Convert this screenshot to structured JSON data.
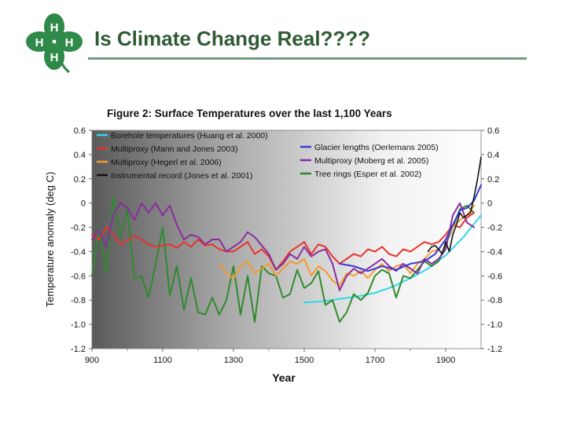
{
  "slide": {
    "title": "Is Climate Change Real????",
    "logo_icon": "four-leaf-clover-icon",
    "logo_letters": "H",
    "title_color": "#2e5a34",
    "rule_color": "#6e9b7f"
  },
  "chart_data": {
    "type": "line",
    "title": "Figure 2: Surface Temperatures over the last 1,100 Years",
    "xlabel": "Year",
    "ylabel": "Temperature anomaly (deg C)",
    "xlim": [
      900,
      2000
    ],
    "ylim": [
      -1.2,
      0.6
    ],
    "x_ticks": [
      "900",
      "1100",
      "1300",
      "1500",
      "1700",
      "1900"
    ],
    "x_tick_values": [
      900,
      1100,
      1300,
      1500,
      1700,
      1900
    ],
    "y_ticks": [
      "0.6",
      "0.4",
      "0.2",
      "0",
      "-0.2",
      "-0.4",
      "-0.6",
      "-0.8",
      "-1.0",
      "-1.2"
    ],
    "y_tick_values": [
      0.6,
      0.4,
      0.2,
      0,
      -0.2,
      -0.4,
      -0.6,
      -0.8,
      -1.0,
      -1.2
    ],
    "background": "gradient dark gray (left) to white (right)",
    "legend_position": "top",
    "series": [
      {
        "name": "Borehole temperatures (Huang et al. 2000)",
        "color": "#33d6e8",
        "x": [
          1500,
          1550,
          1600,
          1650,
          1700,
          1750,
          1800,
          1850,
          1900,
          1950,
          2000
        ],
        "y": [
          -0.82,
          -0.81,
          -0.79,
          -0.77,
          -0.74,
          -0.69,
          -0.62,
          -0.54,
          -0.43,
          -0.28,
          -0.1
        ]
      },
      {
        "name": "Multiproxy (Mann and Jones 2003)",
        "color": "#e8332a",
        "x": [
          900,
          920,
          940,
          960,
          980,
          1000,
          1020,
          1040,
          1060,
          1080,
          1100,
          1120,
          1140,
          1160,
          1180,
          1200,
          1220,
          1240,
          1260,
          1280,
          1300,
          1320,
          1340,
          1360,
          1380,
          1400,
          1420,
          1440,
          1460,
          1480,
          1500,
          1520,
          1540,
          1560,
          1580,
          1600,
          1620,
          1640,
          1660,
          1680,
          1700,
          1720,
          1740,
          1760,
          1780,
          1800,
          1820,
          1840,
          1860,
          1880,
          1900,
          1920,
          1940,
          1960,
          1980
        ],
        "y": [
          -0.26,
          -0.3,
          -0.2,
          -0.26,
          -0.34,
          -0.31,
          -0.27,
          -0.3,
          -0.34,
          -0.36,
          -0.35,
          -0.34,
          -0.37,
          -0.32,
          -0.36,
          -0.3,
          -0.35,
          -0.34,
          -0.38,
          -0.4,
          -0.4,
          -0.36,
          -0.32,
          -0.42,
          -0.38,
          -0.44,
          -0.55,
          -0.48,
          -0.4,
          -0.36,
          -0.32,
          -0.42,
          -0.34,
          -0.36,
          -0.44,
          -0.5,
          -0.46,
          -0.42,
          -0.44,
          -0.38,
          -0.4,
          -0.36,
          -0.42,
          -0.44,
          -0.38,
          -0.4,
          -0.36,
          -0.32,
          -0.34,
          -0.32,
          -0.26,
          -0.18,
          -0.2,
          -0.12,
          -0.08
        ]
      },
      {
        "name": "Multiproxy (Hegerl et al. 2006)",
        "color": "#f59a2c",
        "x": [
          1260,
          1280,
          1300,
          1320,
          1340,
          1360,
          1380,
          1400,
          1420,
          1440,
          1460,
          1480,
          1500,
          1520,
          1540,
          1560,
          1580,
          1600,
          1620,
          1640,
          1660,
          1680,
          1700,
          1720,
          1740,
          1760,
          1780,
          1800,
          1820,
          1840,
          1860,
          1880,
          1900,
          1920,
          1940,
          1960,
          1980
        ],
        "y": [
          -0.5,
          -0.58,
          -0.62,
          -0.52,
          -0.48,
          -0.58,
          -0.54,
          -0.5,
          -0.6,
          -0.54,
          -0.48,
          -0.5,
          -0.46,
          -0.6,
          -0.52,
          -0.56,
          -0.64,
          -0.68,
          -0.58,
          -0.6,
          -0.56,
          -0.62,
          -0.55,
          -0.5,
          -0.56,
          -0.52,
          -0.5,
          -0.58,
          -0.5,
          -0.46,
          -0.4,
          -0.38,
          -0.3,
          -0.2,
          -0.14,
          -0.1,
          -0.02
        ]
      },
      {
        "name": "Instrumental record (Jones et al. 2001)",
        "color": "#111111",
        "x": [
          1850,
          1860,
          1870,
          1880,
          1890,
          1900,
          1910,
          1920,
          1930,
          1940,
          1950,
          1960,
          1970,
          1980,
          1990,
          2000
        ],
        "y": [
          -0.4,
          -0.36,
          -0.35,
          -0.38,
          -0.42,
          -0.32,
          -0.4,
          -0.26,
          -0.18,
          -0.08,
          -0.12,
          -0.1,
          -0.08,
          0.05,
          0.2,
          0.38
        ]
      },
      {
        "name": "Glacier lengths (Oerlemans 2005)",
        "color": "#3a3ad6",
        "x": [
          1600,
          1640,
          1680,
          1720,
          1760,
          1800,
          1840,
          1870,
          1900,
          1920,
          1940,
          1960,
          1980,
          2000
        ],
        "y": [
          -0.5,
          -0.52,
          -0.56,
          -0.52,
          -0.55,
          -0.5,
          -0.48,
          -0.42,
          -0.3,
          -0.18,
          -0.06,
          -0.04,
          0.02,
          0.15
        ]
      },
      {
        "name": "Multiproxy (Moberg et al. 2005)",
        "color": "#8a2d9e",
        "x": [
          900,
          920,
          940,
          960,
          980,
          1000,
          1020,
          1040,
          1060,
          1080,
          1100,
          1120,
          1140,
          1160,
          1180,
          1200,
          1220,
          1240,
          1260,
          1280,
          1300,
          1320,
          1340,
          1360,
          1380,
          1400,
          1420,
          1440,
          1460,
          1480,
          1500,
          1520,
          1540,
          1560,
          1580,
          1600,
          1620,
          1640,
          1660,
          1680,
          1700,
          1720,
          1740,
          1760,
          1780,
          1800,
          1820,
          1840,
          1860,
          1880,
          1900,
          1920,
          1940,
          1960,
          1980
        ],
        "y": [
          -0.3,
          -0.22,
          -0.36,
          -0.1,
          0.0,
          -0.04,
          -0.14,
          0.0,
          -0.08,
          0.0,
          -0.1,
          -0.02,
          -0.18,
          -0.3,
          -0.26,
          -0.28,
          -0.34,
          -0.3,
          -0.3,
          -0.4,
          -0.36,
          -0.32,
          -0.24,
          -0.28,
          -0.35,
          -0.42,
          -0.55,
          -0.5,
          -0.42,
          -0.46,
          -0.36,
          -0.44,
          -0.4,
          -0.38,
          -0.5,
          -0.72,
          -0.6,
          -0.54,
          -0.58,
          -0.54,
          -0.5,
          -0.46,
          -0.52,
          -0.56,
          -0.5,
          -0.54,
          -0.58,
          -0.46,
          -0.5,
          -0.46,
          -0.38,
          -0.1,
          0.0,
          -0.16,
          -0.2
        ]
      },
      {
        "name": "Tree rings (Esper et al. 2002)",
        "color": "#2f8a2f",
        "x": [
          900,
          920,
          940,
          960,
          980,
          1000,
          1020,
          1040,
          1060,
          1080,
          1100,
          1120,
          1140,
          1160,
          1180,
          1200,
          1220,
          1240,
          1260,
          1280,
          1300,
          1320,
          1340,
          1360,
          1380,
          1400,
          1420,
          1440,
          1460,
          1480,
          1500,
          1520,
          1540,
          1560,
          1580,
          1600,
          1620,
          1640,
          1660,
          1680,
          1700,
          1720,
          1740,
          1760,
          1780,
          1800,
          1820,
          1840,
          1860,
          1880,
          1900,
          1920,
          1940,
          1960,
          1980
        ],
        "y": [
          -0.6,
          -0.2,
          -0.58,
          0.05,
          -0.28,
          -0.05,
          -0.62,
          -0.6,
          -0.78,
          -0.5,
          -0.2,
          -0.76,
          -0.52,
          -0.88,
          -0.62,
          -0.9,
          -0.92,
          -0.78,
          -0.92,
          -0.8,
          -0.52,
          -0.92,
          -0.6,
          -0.98,
          -0.52,
          -0.58,
          -0.6,
          -0.78,
          -0.75,
          -0.55,
          -0.7,
          -0.66,
          -0.56,
          -0.84,
          -0.8,
          -0.98,
          -0.9,
          -0.75,
          -0.8,
          -0.74,
          -0.6,
          -0.55,
          -0.58,
          -0.78,
          -0.6,
          -0.62,
          -0.55,
          -0.48,
          -0.52,
          -0.48,
          -0.34,
          -0.2,
          -0.05,
          -0.02,
          -0.08
        ]
      }
    ],
    "legend_layout": [
      [
        0,
        1,
        2,
        3
      ],
      [
        4,
        5,
        6
      ]
    ]
  }
}
